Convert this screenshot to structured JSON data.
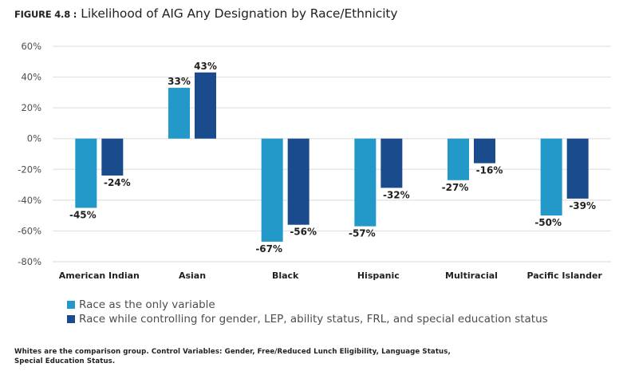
{
  "title": {
    "figure_label": "FIGURE 4.8 :",
    "text": "Likelihood of AIG Any Designation by Race/Ethnicity"
  },
  "colors": {
    "series1": "#2399c9",
    "series2": "#1a4b8c",
    "grid": "#e2e2e2"
  },
  "chart_data": {
    "type": "bar",
    "title": "Likelihood of AIG Any Designation by Race/Ethnicity",
    "xlabel": "",
    "ylabel": "",
    "categories": [
      "American Indian",
      "Asian",
      "Black",
      "Hispanic",
      "Multiracial",
      "Pacific Islander"
    ],
    "series": [
      {
        "name": "Race as the only variable",
        "values": [
          -45,
          33,
          -67,
          -57,
          -27,
          -50
        ]
      },
      {
        "name": "Race while controlling for gender, LEP, ability status, FRL, and special education status",
        "values": [
          -24,
          43,
          -56,
          -32,
          -16,
          -39
        ]
      }
    ],
    "data_labels": [
      [
        "-45%",
        "33%",
        "-67%",
        "-57%",
        "-27%",
        "-50%"
      ],
      [
        "-24%",
        "43%",
        "-56%",
        "-32%",
        "-16%",
        "-39%"
      ]
    ],
    "yticks": [
      60,
      40,
      20,
      0,
      -20,
      -40,
      -60,
      -80
    ],
    "ytick_labels": [
      "60%",
      "40%",
      "20%",
      "0%",
      "-20%",
      "-40%",
      "-60%",
      "-80%"
    ],
    "ylim": [
      -80,
      60
    ],
    "grid": true,
    "legend_position": "bottom-left"
  },
  "legend": [
    {
      "label": "Race as the only variable"
    },
    {
      "label": "Race while controlling for gender, LEP, ability status, FRL, and special education status"
    }
  ],
  "footnote": "Whites are the comparison group. Control Variables: Gender, Free/Reduced Lunch Eligibility, Language Status, Special Education Status."
}
